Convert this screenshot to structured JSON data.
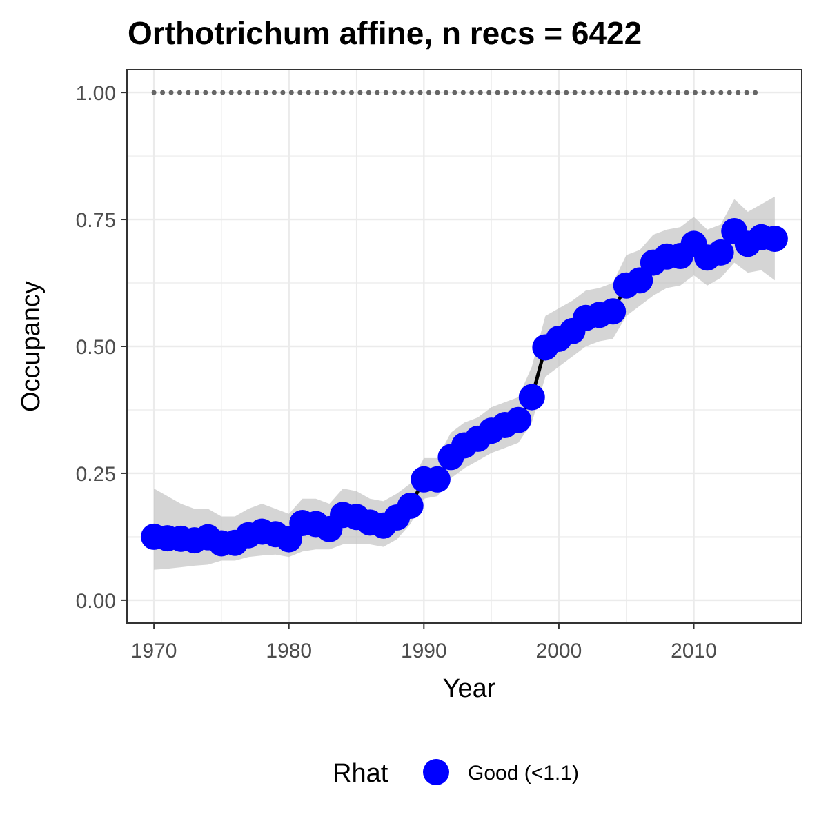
{
  "chart_data": {
    "type": "line",
    "title": "Orthotrichum affine, n recs = 6422",
    "xlabel": "Year",
    "ylabel": "Occupancy",
    "xlim": [
      1968,
      2018
    ],
    "ylim": [
      -0.045,
      1.045
    ],
    "x_ticks": [
      1970,
      1980,
      1990,
      2000,
      2010
    ],
    "x_tick_labels": [
      "1970",
      "1980",
      "1990",
      "2000",
      "2010"
    ],
    "y_ticks": [
      0.0,
      0.25,
      0.5,
      0.75,
      1.0
    ],
    "y_tick_labels": [
      "0.00",
      "0.25",
      "0.50",
      "0.75",
      "1.00"
    ],
    "grid": true,
    "legend": {
      "position": "bottom",
      "title": "Rhat",
      "items": [
        {
          "label": "Good (<1.1)",
          "color": "#0000ff"
        }
      ]
    },
    "colors": {
      "points": "#0000ff",
      "line": "#000000",
      "ribbon": "#bfbfbf",
      "reference": "#666666"
    },
    "reference_line": {
      "y": 1.0,
      "x_from": 1970,
      "x_to": 2015,
      "style": "dotted"
    },
    "series": [
      {
        "x": [
          1970,
          1971,
          1972,
          1973,
          1974,
          1975,
          1976,
          1977,
          1978,
          1979,
          1980,
          1981,
          1982,
          1983,
          1984,
          1985,
          1986,
          1987,
          1988,
          1989,
          1990,
          1991,
          1992,
          1993,
          1994,
          1995,
          1996,
          1997,
          1998,
          1999,
          2000,
          2001,
          2002,
          2003,
          2004,
          2005,
          2006,
          2007,
          2008,
          2009,
          2010,
          2011,
          2012,
          2013,
          2014,
          2015,
          2016
        ],
        "y": [
          0.125,
          0.122,
          0.121,
          0.118,
          0.124,
          0.112,
          0.113,
          0.128,
          0.135,
          0.13,
          0.12,
          0.152,
          0.15,
          0.14,
          0.168,
          0.164,
          0.153,
          0.147,
          0.163,
          0.186,
          0.238,
          0.238,
          0.282,
          0.305,
          0.318,
          0.334,
          0.345,
          0.355,
          0.4,
          0.498,
          0.515,
          0.53,
          0.556,
          0.562,
          0.569,
          0.62,
          0.63,
          0.665,
          0.677,
          0.678,
          0.702,
          0.675,
          0.685,
          0.727,
          0.702,
          0.715,
          0.712
        ],
        "lower": [
          0.06,
          0.062,
          0.065,
          0.068,
          0.07,
          0.078,
          0.078,
          0.085,
          0.088,
          0.09,
          0.085,
          0.096,
          0.1,
          0.1,
          0.11,
          0.11,
          0.11,
          0.105,
          0.12,
          0.15,
          0.2,
          0.205,
          0.24,
          0.26,
          0.275,
          0.29,
          0.3,
          0.31,
          0.35,
          0.44,
          0.46,
          0.48,
          0.5,
          0.51,
          0.515,
          0.56,
          0.58,
          0.6,
          0.615,
          0.62,
          0.64,
          0.62,
          0.635,
          0.665,
          0.645,
          0.65,
          0.63
        ],
        "upper": [
          0.22,
          0.205,
          0.19,
          0.18,
          0.18,
          0.165,
          0.165,
          0.18,
          0.19,
          0.18,
          0.17,
          0.2,
          0.2,
          0.19,
          0.22,
          0.215,
          0.2,
          0.195,
          0.21,
          0.23,
          0.28,
          0.28,
          0.33,
          0.35,
          0.36,
          0.38,
          0.39,
          0.4,
          0.46,
          0.56,
          0.575,
          0.59,
          0.61,
          0.615,
          0.625,
          0.68,
          0.69,
          0.72,
          0.73,
          0.735,
          0.755,
          0.73,
          0.74,
          0.79,
          0.765,
          0.78,
          0.795
        ]
      }
    ]
  }
}
